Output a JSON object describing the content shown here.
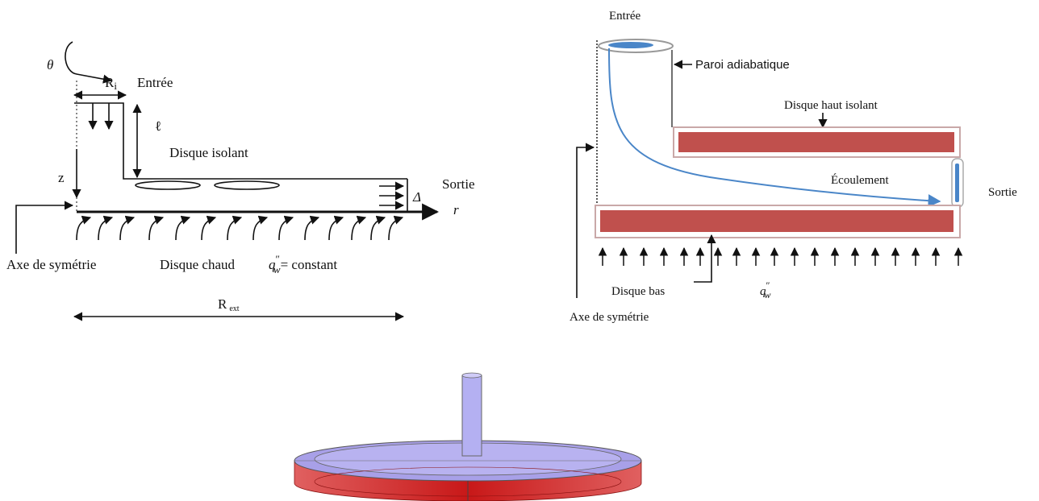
{
  "left_diagram": {
    "theta": "θ",
    "inner_radius": {
      "base": "R",
      "sub": "i"
    },
    "inlet": "Entrée",
    "length": "ℓ",
    "insulated_disk": "Disque isolant",
    "z_axis": "z",
    "outlet": "Sortie",
    "gap": "Δ",
    "r_axis": "r",
    "symmetry_axis": "Axe de symétrie",
    "hot_disk": "Disque chaud",
    "heat_flux": {
      "base": "q",
      "sup": "″",
      "sub": "w",
      "rest": "= constant"
    },
    "outer_radius": {
      "base": "R",
      "sub": "ext"
    }
  },
  "right_diagram": {
    "inlet": "Entrée",
    "adiabatic_wall": "Paroi adiabatique",
    "top_disk": "Disque haut isolant",
    "flow": "Écoulement",
    "outlet": "Sortie",
    "bottom_disk": "Disque bas",
    "heat_flux": {
      "base": "q",
      "sup": "″",
      "sub": "w"
    },
    "symmetry_axis": "Axe de symétrie"
  }
}
